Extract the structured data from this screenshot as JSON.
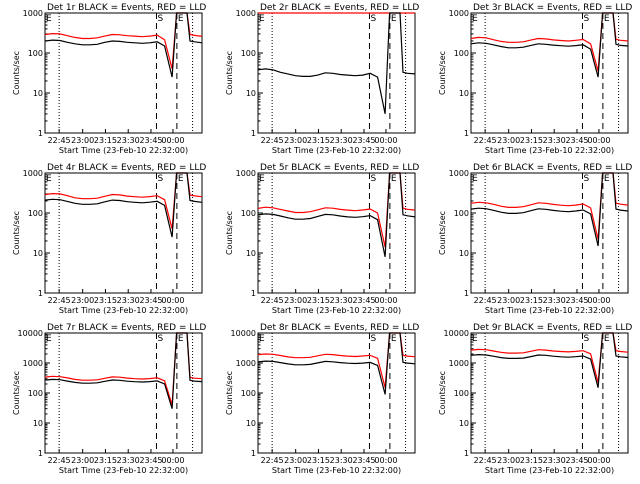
{
  "common": {
    "xlabel": "Start Time (23-Feb-10 22:32:00)",
    "ylabel": "Counts/sec",
    "x_ticks": [
      "22:45",
      "23:00",
      "23:15",
      "23:30",
      "23:45",
      "00:00"
    ],
    "y_ticks": [
      "1",
      "10",
      "100",
      "1000"
    ],
    "markers": {
      "start": "S",
      "end": "E"
    },
    "colors": {
      "events": "#000000",
      "lld": "#ff0000"
    },
    "scale": "log"
  },
  "chart_data": [
    {
      "type": "line",
      "title": "Det 1r BLACK = Events, RED = LLD",
      "x_range_min": [
        0,
        105
      ],
      "ylim": [
        1,
        1000
      ],
      "x_min": [
        0,
        5,
        10,
        15,
        20,
        25,
        30,
        35,
        40,
        45,
        50,
        55,
        60,
        65,
        70,
        75,
        80,
        85,
        88,
        90,
        92,
        95,
        97,
        100,
        105
      ],
      "series": [
        {
          "name": "Events",
          "values": [
            200,
            210,
            205,
            185,
            170,
            160,
            160,
            165,
            185,
            200,
            195,
            185,
            180,
            175,
            180,
            190,
            150,
            25,
            1000,
            1000,
            1000,
            1000,
            200,
            190,
            180
          ]
        },
        {
          "name": "LLD",
          "values": [
            290,
            305,
            300,
            270,
            245,
            230,
            230,
            240,
            265,
            290,
            285,
            270,
            265,
            255,
            265,
            280,
            215,
            40,
            1000,
            1000,
            1000,
            1000,
            290,
            275,
            260
          ]
        }
      ]
    },
    {
      "type": "line",
      "title": "Det 2r BLACK = Events, RED = LLD",
      "x_range_min": [
        0,
        105
      ],
      "ylim": [
        1,
        1000
      ],
      "x_min": [
        0,
        5,
        10,
        15,
        20,
        25,
        30,
        35,
        40,
        45,
        50,
        55,
        60,
        65,
        70,
        75,
        80,
        85,
        88,
        90,
        92,
        95,
        97,
        100,
        105
      ],
      "series": [
        {
          "name": "Events",
          "values": [
            38,
            40,
            38,
            33,
            30,
            27,
            26,
            26,
            28,
            32,
            31,
            29,
            28,
            27,
            28,
            31,
            25,
            3,
            1000,
            1000,
            1000,
            1000,
            33,
            31,
            30
          ]
        },
        {
          "name": "LLD",
          "values": [
            1000,
            1000,
            1000,
            1000,
            1000,
            1000,
            1000,
            1000,
            1000,
            1000,
            1000,
            1000,
            1000,
            1000,
            1000,
            1000,
            1000,
            1000,
            1000,
            1000,
            1000,
            1000,
            1000,
            1000,
            1000
          ]
        }
      ]
    },
    {
      "type": "line",
      "title": "Det 3r BLACK = Events, RED = LLD",
      "x_range_min": [
        0,
        105
      ],
      "ylim": [
        1,
        1000
      ],
      "x_min": [
        0,
        5,
        10,
        15,
        20,
        25,
        30,
        35,
        40,
        45,
        50,
        55,
        60,
        65,
        70,
        75,
        80,
        85,
        88,
        90,
        92,
        95,
        97,
        100,
        105
      ],
      "series": [
        {
          "name": "Events",
          "values": [
            170,
            180,
            175,
            160,
            145,
            135,
            135,
            140,
            155,
            170,
            165,
            158,
            152,
            148,
            153,
            160,
            125,
            25,
            1000,
            1000,
            1000,
            1000,
            165,
            155,
            150
          ]
        },
        {
          "name": "LLD",
          "values": [
            230,
            245,
            240,
            215,
            195,
            185,
            185,
            190,
            210,
            230,
            225,
            212,
            205,
            200,
            208,
            218,
            170,
            35,
            1000,
            1000,
            1000,
            1000,
            220,
            208,
            200
          ]
        }
      ]
    },
    {
      "type": "line",
      "title": "Det 4r BLACK = Events, RED = LLD",
      "x_range_min": [
        0,
        105
      ],
      "ylim": [
        1,
        1000
      ],
      "x_min": [
        0,
        5,
        10,
        15,
        20,
        25,
        30,
        35,
        40,
        45,
        50,
        55,
        60,
        65,
        70,
        75,
        80,
        85,
        88,
        90,
        92,
        95,
        97,
        100,
        105
      ],
      "series": [
        {
          "name": "Events",
          "values": [
            210,
            220,
            215,
            195,
            175,
            165,
            165,
            170,
            190,
            210,
            205,
            192,
            185,
            180,
            186,
            196,
            155,
            25,
            1000,
            1000,
            1000,
            1000,
            205,
            195,
            185
          ]
        },
        {
          "name": "LLD",
          "values": [
            290,
            305,
            300,
            270,
            240,
            228,
            228,
            235,
            262,
            290,
            283,
            265,
            255,
            248,
            257,
            270,
            215,
            40,
            1000,
            1000,
            1000,
            1000,
            282,
            268,
            255
          ]
        }
      ]
    },
    {
      "type": "line",
      "title": "Det 5r BLACK = Events, RED = LLD",
      "x_range_min": [
        0,
        105
      ],
      "ylim": [
        1,
        1000
      ],
      "x_min": [
        0,
        5,
        10,
        15,
        20,
        25,
        30,
        35,
        40,
        45,
        50,
        55,
        60,
        65,
        70,
        75,
        80,
        85,
        88,
        90,
        92,
        95,
        97,
        100,
        105
      ],
      "series": [
        {
          "name": "Events",
          "values": [
            90,
            95,
            92,
            84,
            76,
            70,
            70,
            73,
            82,
            92,
            90,
            84,
            80,
            78,
            81,
            86,
            68,
            8,
            1000,
            1000,
            1000,
            1000,
            90,
            85,
            80
          ]
        },
        {
          "name": "LLD",
          "values": [
            130,
            140,
            135,
            123,
            112,
            103,
            103,
            108,
            120,
            135,
            132,
            123,
            118,
            114,
            119,
            126,
            100,
            14,
            1000,
            1000,
            1000,
            1000,
            132,
            124,
            118
          ]
        }
      ]
    },
    {
      "type": "line",
      "title": "Det 6r BLACK = Events, RED = LLD",
      "x_range_min": [
        0,
        105
      ],
      "ylim": [
        1,
        1000
      ],
      "x_min": [
        0,
        5,
        10,
        15,
        20,
        25,
        30,
        35,
        40,
        45,
        50,
        55,
        60,
        65,
        70,
        75,
        80,
        85,
        88,
        90,
        92,
        95,
        97,
        100,
        105
      ],
      "series": [
        {
          "name": "Events",
          "values": [
            125,
            132,
            128,
            117,
            105,
            98,
            98,
            102,
            114,
            127,
            124,
            116,
            111,
            108,
            112,
            119,
            95,
            15,
            1000,
            1000,
            1000,
            1000,
            125,
            118,
            112
          ]
        },
        {
          "name": "LLD",
          "values": [
            175,
            185,
            180,
            165,
            148,
            138,
            138,
            144,
            160,
            180,
            175,
            164,
            157,
            152,
            158,
            168,
            134,
            22,
            1000,
            1000,
            1000,
            1000,
            176,
            166,
            158
          ]
        }
      ]
    },
    {
      "type": "line",
      "title": "Det 7r BLACK = Events, RED = LLD",
      "x_range_min": [
        0,
        105
      ],
      "ylim": [
        1,
        10000
      ],
      "x_min": [
        0,
        5,
        10,
        15,
        20,
        25,
        30,
        35,
        40,
        45,
        50,
        55,
        60,
        65,
        70,
        75,
        80,
        85,
        88,
        90,
        92,
        95,
        97,
        100,
        105
      ],
      "series": [
        {
          "name": "Events",
          "values": [
            270,
            285,
            278,
            250,
            225,
            212,
            212,
            218,
            245,
            272,
            265,
            248,
            238,
            232,
            240,
            254,
            200,
            30,
            10000,
            10000,
            10000,
            10000,
            265,
            250,
            240
          ]
        },
        {
          "name": "LLD",
          "values": [
            340,
            360,
            350,
            318,
            285,
            268,
            268,
            275,
            310,
            345,
            335,
            313,
            300,
            292,
            303,
            320,
            255,
            40,
            10000,
            10000,
            10000,
            10000,
            330,
            312,
            300
          ]
        }
      ]
    },
    {
      "type": "line",
      "title": "Det 8r BLACK = Events, RED = LLD",
      "x_range_min": [
        0,
        105
      ],
      "ylim": [
        1,
        10000
      ],
      "x_min": [
        0,
        5,
        10,
        15,
        20,
        25,
        30,
        35,
        40,
        45,
        50,
        55,
        60,
        65,
        70,
        75,
        80,
        85,
        88,
        90,
        92,
        95,
        97,
        100,
        105
      ],
      "series": [
        {
          "name": "Events",
          "values": [
            1100,
            1160,
            1130,
            1030,
            930,
            870,
            870,
            900,
            1010,
            1130,
            1100,
            1030,
            985,
            960,
            995,
            1050,
            830,
            90,
            10000,
            10000,
            10000,
            10000,
            1050,
            990,
            940
          ]
        },
        {
          "name": "LLD",
          "values": [
            1900,
            2000,
            1950,
            1780,
            1600,
            1500,
            1500,
            1550,
            1740,
            1950,
            1900,
            1780,
            1700,
            1650,
            1710,
            1810,
            1430,
            150,
            10000,
            10000,
            10000,
            10000,
            1810,
            1700,
            1620
          ]
        }
      ]
    },
    {
      "type": "line",
      "title": "Det 9r BLACK = Events, RED = LLD",
      "x_range_min": [
        0,
        105
      ],
      "ylim": [
        1,
        10000
      ],
      "x_min": [
        0,
        5,
        10,
        15,
        20,
        25,
        30,
        35,
        40,
        45,
        50,
        55,
        60,
        65,
        70,
        75,
        80,
        85,
        88,
        90,
        92,
        95,
        97,
        100,
        105
      ],
      "series": [
        {
          "name": "Events",
          "values": [
            1800,
            1900,
            1850,
            1680,
            1510,
            1420,
            1420,
            1460,
            1640,
            1850,
            1800,
            1680,
            1610,
            1560,
            1620,
            1710,
            1350,
            150,
            10000,
            10000,
            10000,
            10000,
            1710,
            1610,
            1530
          ]
        },
        {
          "name": "LLD",
          "values": [
            2700,
            2850,
            2780,
            2520,
            2270,
            2130,
            2130,
            2190,
            2460,
            2780,
            2700,
            2520,
            2410,
            2340,
            2430,
            2570,
            2030,
            220,
            10000,
            10000,
            10000,
            10000,
            2570,
            2410,
            2290
          ]
        }
      ]
    }
  ]
}
